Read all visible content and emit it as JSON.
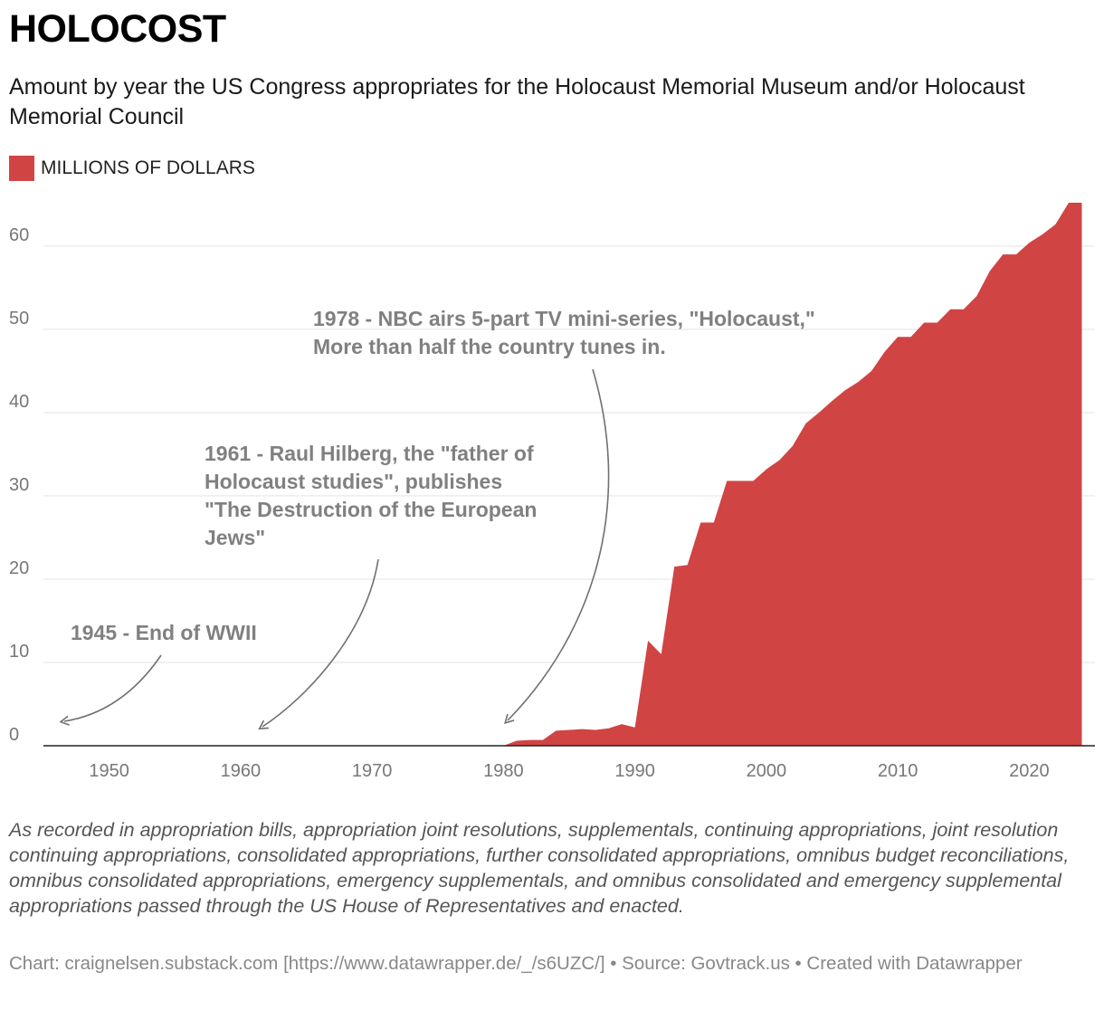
{
  "title": "HOLOCOST",
  "subtitle": "Amount by year the US Congress appropriates for the Holocaust Memorial Museum and/or Holocaust Memorial Council",
  "legend": {
    "label": "MILLIONS OF DOLLARS",
    "color": "#d14444"
  },
  "chart_data": {
    "type": "area",
    "series": [
      {
        "name": "MILLIONS OF DOLLARS",
        "color": "#d14444"
      }
    ],
    "x": [
      1980,
      1981,
      1982,
      1983,
      1984,
      1985,
      1986,
      1987,
      1988,
      1989,
      1990,
      1991,
      1992,
      1993,
      1994,
      1995,
      1996,
      1997,
      1998,
      1999,
      2000,
      2001,
      2002,
      2003,
      2004,
      2005,
      2006,
      2007,
      2008,
      2009,
      2010,
      2011,
      2012,
      2013,
      2014,
      2015,
      2016,
      2017,
      2018,
      2019,
      2020,
      2021,
      2022,
      2023,
      2024
    ],
    "y": [
      0.0,
      0.6,
      0.7,
      0.7,
      1.8,
      1.9,
      2.0,
      1.9,
      2.1,
      2.6,
      2.2,
      12.6,
      11.0,
      21.5,
      21.7,
      26.8,
      26.8,
      31.8,
      31.8,
      31.8,
      33.2,
      34.3,
      36.0,
      38.7,
      40.0,
      41.4,
      42.7,
      43.7,
      45.0,
      47.3,
      49.1,
      49.1,
      50.8,
      50.8,
      52.4,
      52.4,
      54.0,
      57.0,
      59.0,
      59.0,
      60.4,
      61.4,
      62.6,
      65.2,
      65.2
    ],
    "xlim": [
      1945,
      2025
    ],
    "ylim": [
      0,
      65.2
    ],
    "x_ticks": [
      1950,
      1960,
      1970,
      1980,
      1990,
      2000,
      2010,
      2020
    ],
    "y_ticks": [
      0,
      10,
      20,
      30,
      40,
      50,
      60
    ],
    "grid": "horizontal",
    "legend_position": "top-left",
    "annotations": [
      {
        "lines": [
          "1945 - End of WWII"
        ],
        "target_year": 1945
      },
      {
        "lines": [
          "1961 - Raul Hilberg, the \"father of",
          "Holocaust studies\", publishes",
          "\"The Destruction of the European",
          "Jews\""
        ],
        "target_year": 1961
      },
      {
        "lines": [
          "1978 - NBC airs 5-part TV mini-series, \"Holocaust,\"",
          "More than half the country tunes in."
        ],
        "target_year": 1980
      }
    ]
  },
  "notes": "As recorded in appropriation bills, appropriation joint resolutions, supplementals, continuing appropriations, joint resolution continuing appropriations, consolidated appropriations, further consolidated appropriations, omnibus budget reconciliations, omnibus consolidated appropriations, emergency supplementals, and omnibus consolidated and emergency supplemental appropriations passed through the US House of Representatives and enacted.",
  "credit": "Chart: craignelsen.substack.com [https://www.datawrapper.de/_/s6UZC/] • Source: Govtrack.us • Created with Datawrapper"
}
